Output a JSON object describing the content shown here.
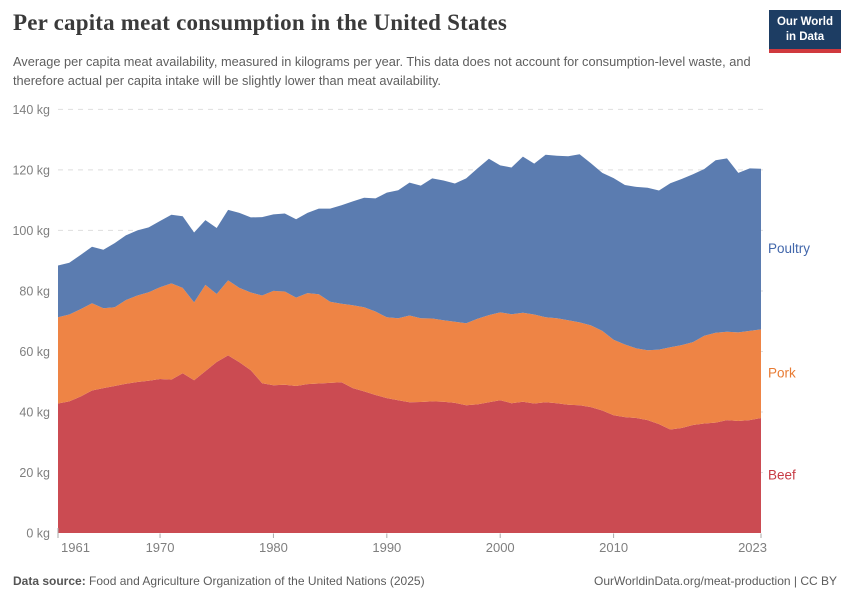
{
  "header": {
    "title": "Per capita meat consumption in the United States",
    "subtitle": "Average per capita meat availability, measured in kilograms per year. This data does not account for consumption-level waste, and therefore actual per capita intake will be slightly lower than meat availability.",
    "logo": {
      "line1": "Our World",
      "line2": "in Data",
      "bg_color": "#1d3d63",
      "accent_color": "#d0393e"
    }
  },
  "footer": {
    "source_label": "Data source:",
    "source_text": " Food and Agriculture Organization of the United Nations (2025)",
    "link_text": "OurWorldinData.org/meat-production | CC BY"
  },
  "chart_data": {
    "type": "area",
    "stacked": true,
    "title": "Per capita meat consumption in the United States",
    "xlabel": "",
    "ylabel": "kg per year",
    "ylim": [
      0,
      140
    ],
    "xlim": [
      1961,
      2023
    ],
    "grid": "horizontal-dashed",
    "legend_position": "right-edge-labels",
    "ytick_suffix": " kg",
    "yticks": [
      0,
      20,
      40,
      60,
      80,
      100,
      120,
      140
    ],
    "xticks": [
      1961,
      1970,
      1980,
      1990,
      2000,
      2010,
      2023
    ],
    "x": [
      1961,
      1962,
      1963,
      1964,
      1965,
      1966,
      1967,
      1968,
      1969,
      1970,
      1971,
      1972,
      1973,
      1974,
      1975,
      1976,
      1977,
      1978,
      1979,
      1980,
      1981,
      1982,
      1983,
      1984,
      1985,
      1986,
      1987,
      1988,
      1989,
      1990,
      1991,
      1992,
      1993,
      1994,
      1995,
      1996,
      1997,
      1998,
      1999,
      2000,
      2001,
      2002,
      2003,
      2004,
      2005,
      2006,
      2007,
      2008,
      2009,
      2010,
      2011,
      2012,
      2013,
      2014,
      2015,
      2016,
      2017,
      2018,
      2019,
      2020,
      2021,
      2022,
      2023
    ],
    "series": [
      {
        "name": "Beef",
        "color": "#cb4b52",
        "label_color": "#c73b44",
        "values": [
          42.8,
          43.5,
          45.1,
          47.1,
          47.9,
          48.6,
          49.3,
          49.9,
          50.3,
          50.9,
          50.7,
          52.8,
          50.5,
          53.5,
          56.5,
          58.7,
          56.4,
          53.8,
          49.5,
          48.8,
          49.0,
          48.6,
          49.2,
          49.4,
          49.6,
          49.8,
          47.9,
          46.8,
          45.6,
          44.6,
          43.9,
          43.2,
          43.3,
          43.5,
          43.4,
          43.0,
          42.2,
          42.5,
          43.2,
          43.9,
          42.9,
          43.4,
          42.8,
          43.2,
          42.9,
          42.4,
          42.2,
          41.6,
          40.5,
          38.9,
          38.3,
          38.0,
          37.3,
          36.0,
          34.2,
          34.7,
          35.7,
          36.2,
          36.5,
          37.3,
          37.0,
          37.3,
          38.0
        ]
      },
      {
        "name": "Pork",
        "color": "#ee8445",
        "label_color": "#e87b33",
        "values": [
          28.5,
          28.7,
          28.9,
          28.8,
          26.4,
          26.0,
          27.7,
          28.6,
          29.3,
          30.3,
          31.8,
          28.2,
          25.7,
          28.5,
          22.5,
          24.8,
          24.6,
          25.7,
          29.0,
          31.2,
          30.8,
          29.2,
          30.1,
          29.5,
          26.8,
          26.0,
          27.4,
          27.8,
          27.6,
          26.7,
          27.1,
          28.7,
          27.7,
          27.4,
          26.9,
          26.8,
          27.1,
          28.3,
          28.8,
          29.0,
          29.4,
          29.4,
          29.4,
          28.1,
          28.1,
          27.9,
          27.4,
          27.0,
          26.3,
          25.0,
          24.0,
          23.0,
          23.1,
          24.6,
          27.2,
          27.4,
          27.4,
          29.0,
          29.7,
          29.2,
          29.3,
          29.5,
          29.3
        ]
      },
      {
        "name": "Poultry",
        "color": "#5b7cb0",
        "label_color": "#4267ab",
        "values": [
          17.1,
          17.1,
          17.9,
          18.7,
          19.3,
          21.2,
          21.4,
          21.5,
          21.4,
          21.9,
          22.7,
          23.7,
          23.1,
          21.4,
          21.8,
          23.3,
          24.8,
          24.8,
          25.9,
          25.3,
          25.8,
          25.9,
          26.5,
          28.3,
          30.8,
          32.5,
          34.3,
          36.2,
          37.4,
          41.2,
          42.3,
          43.9,
          43.8,
          46.3,
          46.2,
          45.7,
          47.9,
          49.7,
          51.7,
          48.6,
          48.5,
          51.6,
          49.9,
          53.7,
          53.7,
          54.2,
          55.6,
          53.6,
          52.2,
          53.4,
          52.7,
          53.4,
          53.7,
          52.6,
          54.2,
          54.9,
          55.5,
          55.1,
          57.0,
          57.3,
          52.7,
          53.7,
          53.1
        ]
      }
    ]
  }
}
